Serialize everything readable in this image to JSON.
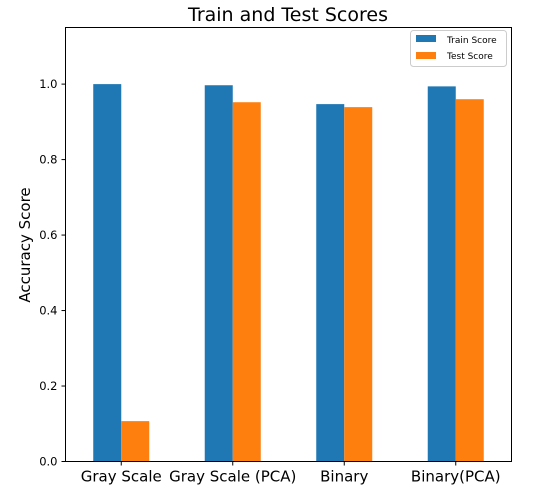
{
  "chart_data": {
    "type": "bar",
    "title": "Train and Test Scores",
    "xlabel": "",
    "ylabel": "Accuracy Score",
    "categories": [
      "Gray Scale",
      "Gray Scale (PCA)",
      "Binary",
      "Binary(PCA)"
    ],
    "series": [
      {
        "name": "Train Score",
        "color": "#1f77b4",
        "values": [
          1.0,
          0.997,
          0.947,
          0.994
        ]
      },
      {
        "name": "Test Score",
        "color": "#ff7f0e",
        "values": [
          0.107,
          0.952,
          0.939,
          0.96
        ]
      }
    ],
    "ylim": [
      0,
      1.15
    ],
    "yticks": [
      "0.0",
      "0.2",
      "0.4",
      "0.6",
      "0.8",
      "1.0"
    ],
    "grid": false,
    "legend": "top-right"
  }
}
